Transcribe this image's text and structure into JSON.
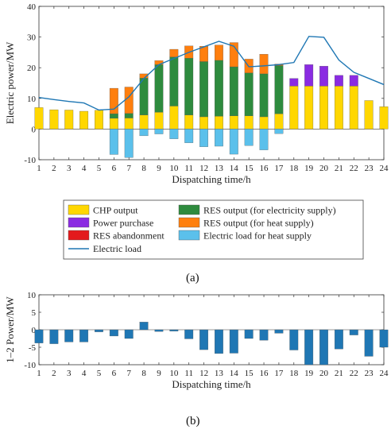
{
  "colors": {
    "chp": "#FFD700",
    "purchase": "#8A2BE2",
    "abandon": "#E31A1C",
    "res_elec": "#2E8B3E",
    "res_heat": "#FF7F0E",
    "load_heat": "#5BC0EB",
    "load_line": "#1F77B4",
    "bar_b": "#1F77B4"
  },
  "chart_data": [
    {
      "type": "bar",
      "panel_label": "(a)",
      "xlabel": "Dispatching time/h",
      "ylabel": "Electric power/MW",
      "ylim": [
        -10,
        40
      ],
      "yticks": [
        -10,
        0,
        10,
        20,
        30,
        40
      ],
      "categories": [
        1,
        2,
        3,
        4,
        5,
        6,
        7,
        8,
        9,
        10,
        11,
        12,
        13,
        14,
        15,
        16,
        17,
        18,
        19,
        20,
        21,
        22,
        23,
        24
      ],
      "grid": false,
      "legend_position": "below",
      "series": [
        {
          "name": "CHP output",
          "key": "chp",
          "values": [
            7,
            6.3,
            6.2,
            5.8,
            6.1,
            3.5,
            3.6,
            4.6,
            5.5,
            7.5,
            4.6,
            4,
            4.2,
            4.3,
            4.3,
            4,
            5,
            14,
            14,
            14,
            14,
            14,
            9.3,
            7.3
          ]
        },
        {
          "name": "Power purchase",
          "key": "purchase",
          "values": [
            0,
            0,
            0,
            0,
            0,
            0,
            0,
            0,
            0,
            0,
            0,
            0,
            0,
            0,
            0,
            0,
            0,
            2.5,
            7,
            6.5,
            3.5,
            3.5,
            0,
            0
          ]
        },
        {
          "name": "RES abandonment",
          "key": "abandon",
          "values": [
            0,
            0,
            0,
            0,
            0,
            0,
            0,
            0,
            0,
            0,
            0,
            0,
            0,
            0,
            0,
            0,
            0,
            0,
            0,
            0,
            0,
            0,
            0,
            0
          ]
        },
        {
          "name": "RES output (for electricity supply)",
          "key": "res_elec",
          "values": [
            0,
            0,
            0,
            0,
            0,
            1.5,
            1.5,
            12,
            15.5,
            16,
            18.5,
            18,
            18.2,
            16,
            14,
            14,
            15.7,
            0,
            0,
            0,
            0,
            0,
            0,
            0
          ]
        },
        {
          "name": "RES output (for heat supply)",
          "key": "res_heat",
          "values": [
            0,
            0,
            0,
            0,
            0,
            8.3,
            8.6,
            1.4,
            1.3,
            2.5,
            4,
            5,
            5,
            7.9,
            4.5,
            6.4,
            0.5,
            0,
            0,
            0,
            0,
            0,
            0,
            0
          ]
        },
        {
          "name": "Electric load for heat supply",
          "key": "load_heat",
          "values": [
            0,
            0,
            0,
            0,
            0,
            -8.3,
            -9.3,
            -2.2,
            -1.6,
            -3.2,
            -4.5,
            -5.8,
            -5.6,
            -8.2,
            -5.4,
            -6.8,
            -1.5,
            0,
            0,
            0,
            0,
            0,
            0,
            0
          ]
        }
      ],
      "line": {
        "name": "Electric load",
        "key": "load_line",
        "values": [
          10.3,
          9.6,
          9,
          8.5,
          6.2,
          6.5,
          10.5,
          16.5,
          21,
          23,
          25,
          26.8,
          28.6,
          27,
          20.3,
          20.6,
          21,
          21.7,
          30.2,
          29.9,
          22.5,
          18.5,
          16.5,
          14.5
        ]
      }
    },
    {
      "type": "bar",
      "panel_label": "(b)",
      "xlabel": "Dispatching time/h",
      "ylabel": "1–2 Power/MW",
      "ylim": [
        -10,
        10
      ],
      "yticks": [
        -10,
        -5,
        0,
        5,
        10
      ],
      "categories": [
        1,
        2,
        3,
        4,
        5,
        6,
        7,
        8,
        9,
        10,
        11,
        12,
        13,
        14,
        15,
        16,
        17,
        18,
        19,
        20,
        21,
        22,
        23,
        24
      ],
      "grid": false,
      "series": [
        {
          "key": "bar_b",
          "values": [
            -3.8,
            -4,
            -3.5,
            -3.5,
            -0.6,
            -1.8,
            -2.5,
            2.2,
            -0.5,
            -0.4,
            -2.6,
            -5.7,
            -6.8,
            -6.7,
            -2.5,
            -3,
            -1,
            -5.8,
            -10,
            -10,
            -5.5,
            -1.5,
            -7.6,
            -5
          ]
        }
      ]
    }
  ]
}
